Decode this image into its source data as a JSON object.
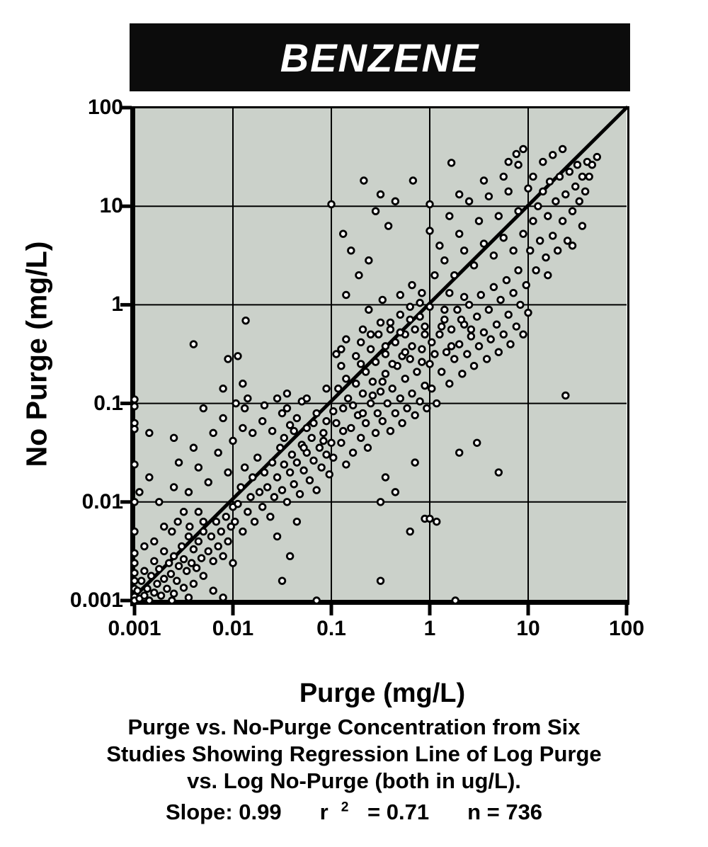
{
  "title": "BENZENE",
  "chart_data": {
    "type": "scatter",
    "title": "BENZENE",
    "xlabel": "Purge (mg/L)",
    "ylabel": "No Purge (mg/L)",
    "xscale": "log",
    "yscale": "log",
    "xlim": [
      0.001,
      100
    ],
    "ylim": [
      0.001,
      100
    ],
    "x_tick_labels": [
      "0.001",
      "0.01",
      "0.1",
      "1",
      "10",
      "100"
    ],
    "y_tick_labels": [
      "100",
      "10",
      "1",
      "0.1",
      "0.01",
      "0.001"
    ],
    "grid": true,
    "legend": "none",
    "plot_bg": "#cbd1ca",
    "marker": {
      "fill": "#ffffff",
      "stroke": "#000000",
      "radius": 4.3,
      "stroke_width": 2.8
    },
    "regression_line": {
      "from_log10": [
        -3,
        -2.96
      ],
      "to_log10": [
        2,
        2
      ],
      "color": "#000000",
      "width": 5
    },
    "caption_lines": [
      "Purge vs. No-Purge Concentration from Six",
      "Studies Showing Regression Line of Log Purge",
      "vs. Log No-Purge (both in ug/L)."
    ],
    "stats": {
      "slope": "Slope:  0.99",
      "r_base": "r",
      "r_exp": "2",
      "r_value": " = 0.71",
      "n": "n = 736"
    },
    "points_log10": [
      [
        -3,
        -0.96
      ],
      [
        -3,
        -1.03
      ],
      [
        -3,
        -1.2
      ],
      [
        -3,
        -1.26
      ],
      [
        -3,
        -1.62
      ],
      [
        -3,
        -2.0
      ],
      [
        -3,
        -2.3
      ],
      [
        -3,
        -2.52
      ],
      [
        -3,
        -2.62
      ],
      [
        -3,
        -2.72
      ],
      [
        -3,
        -2.8
      ],
      [
        -3,
        -2.88
      ],
      [
        -3,
        -2.96
      ],
      [
        -3,
        -3
      ],
      [
        -2.97,
        -2.9
      ],
      [
        -2.95,
        -2.98
      ],
      [
        -2.93,
        -2.8
      ],
      [
        -2.9,
        -2.95
      ],
      [
        -2.9,
        -2.7
      ],
      [
        -2.87,
        -2.88
      ],
      [
        -2.85,
        -3
      ],
      [
        -2.83,
        -2.75
      ],
      [
        -2.8,
        -2.92
      ],
      [
        -2.8,
        -2.6
      ],
      [
        -2.77,
        -2.83
      ],
      [
        -2.75,
        -2.68
      ],
      [
        -2.73,
        -2.95
      ],
      [
        -2.7,
        -2.78
      ],
      [
        -2.7,
        -2.5
      ],
      [
        -2.67,
        -2.88
      ],
      [
        -2.65,
        -2.62
      ],
      [
        -2.63,
        -2.73
      ],
      [
        -2.6,
        -2.93
      ],
      [
        -2.6,
        -2.55
      ],
      [
        -2.57,
        -2.8
      ],
      [
        -2.55,
        -2.65
      ],
      [
        -2.52,
        -2.45
      ],
      [
        -2.5,
        -2.87
      ],
      [
        -2.5,
        -2.58
      ],
      [
        -2.47,
        -2.7
      ],
      [
        -2.45,
        -2.35
      ],
      [
        -2.42,
        -2.62
      ],
      [
        -2.4,
        -2.83
      ],
      [
        -2.4,
        -2.48
      ],
      [
        -2.37,
        -2.67
      ],
      [
        -2.35,
        -2.4
      ],
      [
        -2.32,
        -2.57
      ],
      [
        -2.3,
        -2.75
      ],
      [
        -2.3,
        -2.3
      ],
      [
        -2.62,
        -3
      ],
      [
        -2.45,
        -2.97
      ],
      [
        -2.2,
        -2.9
      ],
      [
        -2.1,
        -2.97
      ],
      [
        -2.56,
        -2.2
      ],
      [
        -2.5,
        -2.1
      ],
      [
        -2.44,
        -2.25
      ],
      [
        -2.35,
        -2.1
      ],
      [
        -2.3,
        -2.2
      ],
      [
        -2.62,
        -2.3
      ],
      [
        -2.7,
        -2.25
      ],
      [
        -2.8,
        -2.4
      ],
      [
        -2.9,
        -2.45
      ],
      [
        -2.25,
        -2.5
      ],
      [
        -2.22,
        -2.35
      ],
      [
        -2.2,
        -2.6
      ],
      [
        -2.17,
        -2.2
      ],
      [
        -2.15,
        -2.45
      ],
      [
        -2.12,
        -2.3
      ],
      [
        -2.1,
        -2.55
      ],
      [
        -2.07,
        -2.15
      ],
      [
        -2.05,
        -2.4
      ],
      [
        -2.02,
        -2.25
      ],
      [
        -2.0,
        -2.62
      ],
      [
        -2.0,
        -2.05
      ],
      [
        -2.95,
        -1.9
      ],
      [
        -2.85,
        -1.75
      ],
      [
        -2.75,
        -2.0
      ],
      [
        -2.6,
        -1.85
      ],
      [
        -2.55,
        -1.6
      ],
      [
        -2.45,
        -1.9
      ],
      [
        -2.35,
        -1.65
      ],
      [
        -2.25,
        -1.8
      ],
      [
        -2.15,
        -1.5
      ],
      [
        -2.05,
        -1.7
      ],
      [
        -2.85,
        -1.3
      ],
      [
        -2.6,
        -1.35
      ],
      [
        -2.4,
        -1.45
      ],
      [
        -2.2,
        -1.3
      ],
      [
        -2.0,
        -1.38
      ],
      [
        -2.1,
        -1.15
      ],
      [
        -2.3,
        -1.05
      ],
      [
        -2.4,
        -0.4
      ],
      [
        -2.1,
        -0.85
      ],
      [
        -2.05,
        -0.55
      ],
      [
        -1.95,
        -0.52
      ],
      [
        -1.9,
        -0.8
      ],
      [
        -1.87,
        -0.16
      ],
      [
        -1.97,
        -1.0
      ],
      [
        -1.85,
        -0.95
      ],
      [
        -1.98,
        -2.2
      ],
      [
        -1.95,
        -2.02
      ],
      [
        -1.92,
        -1.85
      ],
      [
        -1.9,
        -2.3
      ],
      [
        -1.88,
        -1.65
      ],
      [
        -1.85,
        -2.1
      ],
      [
        -1.82,
        -1.95
      ],
      [
        -1.8,
        -1.75
      ],
      [
        -1.78,
        -2.2
      ],
      [
        -1.75,
        -1.55
      ],
      [
        -1.73,
        -1.9
      ],
      [
        -1.7,
        -2.05
      ],
      [
        -1.68,
        -1.7
      ],
      [
        -1.65,
        -1.85
      ],
      [
        -1.62,
        -2.15
      ],
      [
        -1.6,
        -1.6
      ],
      [
        -1.58,
        -1.95
      ],
      [
        -1.55,
        -1.75
      ],
      [
        -1.52,
        -1.45
      ],
      [
        -1.5,
        -1.88
      ],
      [
        -1.48,
        -1.62
      ],
      [
        -1.45,
        -2.0
      ],
      [
        -1.42,
        -1.7
      ],
      [
        -1.4,
        -1.52
      ],
      [
        -1.38,
        -1.82
      ],
      [
        -1.35,
        -1.6
      ],
      [
        -1.32,
        -1.92
      ],
      [
        -1.3,
        -1.42
      ],
      [
        -1.28,
        -1.68
      ],
      [
        -1.25,
        -1.5
      ],
      [
        -1.22,
        -1.78
      ],
      [
        -1.2,
        -1.35
      ],
      [
        -1.18,
        -1.58
      ],
      [
        -1.15,
        -1.88
      ],
      [
        -1.12,
        -1.45
      ],
      [
        -1.1,
        -1.65
      ],
      [
        -1.08,
        -1.3
      ],
      [
        -1.05,
        -1.52
      ],
      [
        -1.02,
        -1.72
      ],
      [
        -1.0,
        -1.4
      ],
      [
        -1.9,
        -1.25
      ],
      [
        -1.8,
        -1.3
      ],
      [
        -1.7,
        -1.18
      ],
      [
        -1.6,
        -1.28
      ],
      [
        -1.5,
        -1.1
      ],
      [
        -1.42,
        -1.22
      ],
      [
        -1.35,
        -1.15
      ],
      [
        -1.25,
        -1.25
      ],
      [
        -1.15,
        -1.1
      ],
      [
        -1.05,
        -1.18
      ],
      [
        -1.88,
        -1.05
      ],
      [
        -1.68,
        -1.02
      ],
      [
        -1.55,
        -0.95
      ],
      [
        -1.45,
        -0.9
      ],
      [
        -1.3,
        -0.98
      ],
      [
        -1.55,
        -2.35
      ],
      [
        -1.35,
        -2.2
      ],
      [
        -1.5,
        -2.8
      ],
      [
        -1.42,
        -2.55
      ],
      [
        -1.15,
        -3
      ],
      [
        -0.98,
        -1.55
      ],
      [
        -0.95,
        -1.2
      ],
      [
        -0.93,
        -0.85
      ],
      [
        -0.9,
        -1.4
      ],
      [
        -0.88,
        -1.05
      ],
      [
        -0.85,
        -1.62
      ],
      [
        -0.83,
        -0.95
      ],
      [
        -0.8,
        -1.25
      ],
      [
        -0.78,
        -1.5
      ],
      [
        -0.75,
        -0.8
      ],
      [
        -0.73,
        -1.12
      ],
      [
        -0.7,
        -1.35
      ],
      [
        -0.68,
        -0.9
      ],
      [
        -0.65,
        -1.2
      ],
      [
        -0.63,
        -1.45
      ],
      [
        -0.6,
        -1.0
      ],
      [
        -0.58,
        -0.78
      ],
      [
        -0.55,
        -1.3
      ],
      [
        -0.53,
        -1.1
      ],
      [
        -0.5,
        -0.88
      ],
      [
        -0.48,
        -1.18
      ],
      [
        -0.45,
        -0.7
      ],
      [
        -0.43,
        -1.0
      ],
      [
        -0.4,
        -1.28
      ],
      [
        -0.38,
        -0.85
      ],
      [
        -0.35,
        -1.1
      ],
      [
        -0.33,
        -0.62
      ],
      [
        -0.3,
        -0.95
      ],
      [
        -0.28,
        -1.2
      ],
      [
        -0.25,
        -0.75
      ],
      [
        -0.23,
        -1.05
      ],
      [
        -0.2,
        -0.55
      ],
      [
        -0.18,
        -0.9
      ],
      [
        -0.15,
        -1.12
      ],
      [
        -0.13,
        -0.68
      ],
      [
        -0.1,
        -0.98
      ],
      [
        -0.08,
        -0.45
      ],
      [
        -0.05,
        -0.82
      ],
      [
        -0.03,
        -1.05
      ],
      [
        0.0,
        -0.6
      ],
      [
        -0.95,
        -0.5
      ],
      [
        -0.85,
        -0.35
      ],
      [
        -0.75,
        -0.52
      ],
      [
        -0.68,
        -0.25
      ],
      [
        -0.6,
        -0.45
      ],
      [
        -0.52,
        -0.3
      ],
      [
        -0.45,
        -0.5
      ],
      [
        -0.4,
        -0.18
      ],
      [
        -0.35,
        -0.38
      ],
      [
        -0.3,
        -0.1
      ],
      [
        -0.25,
        -0.3
      ],
      [
        -0.2,
        -0.02
      ],
      [
        -0.15,
        -0.25
      ],
      [
        -0.1,
        -0.12
      ],
      [
        -0.05,
        -0.3
      ],
      [
        -0.9,
        -0.62
      ],
      [
        -0.7,
        -0.6
      ],
      [
        -0.55,
        -0.58
      ],
      [
        -0.62,
        -0.05
      ],
      [
        -0.48,
        0.05
      ],
      [
        -0.3,
        0.1
      ],
      [
        -0.18,
        0.2
      ],
      [
        -0.08,
        0.12
      ],
      [
        -1.0,
        1.02
      ],
      [
        -0.88,
        0.72
      ],
      [
        -0.8,
        0.55
      ],
      [
        -0.67,
        1.26
      ],
      [
        -0.55,
        0.95
      ],
      [
        -0.5,
        1.12
      ],
      [
        -0.42,
        0.8
      ],
      [
        -0.35,
        1.05
      ],
      [
        -0.62,
        0.45
      ],
      [
        -0.72,
        0.3
      ],
      [
        -0.85,
        0.1
      ],
      [
        -0.17,
        1.26
      ],
      [
        -0.5,
        -2.0
      ],
      [
        -0.35,
        -1.9
      ],
      [
        -0.2,
        -2.3
      ],
      [
        -0.05,
        -2.17
      ],
      [
        -0.45,
        -1.75
      ],
      [
        -0.15,
        -1.6
      ],
      [
        -0.5,
        -2.8
      ],
      [
        0.02,
        -0.85
      ],
      [
        0.05,
        -0.5
      ],
      [
        0.07,
        -1.0
      ],
      [
        0.1,
        -0.3
      ],
      [
        0.12,
        -0.68
      ],
      [
        0.15,
        -0.15
      ],
      [
        0.17,
        -0.48
      ],
      [
        0.2,
        -0.8
      ],
      [
        0.22,
        -0.25
      ],
      [
        0.25,
        -0.55
      ],
      [
        0.28,
        -0.05
      ],
      [
        0.3,
        -0.4
      ],
      [
        0.33,
        -0.7
      ],
      [
        0.35,
        -0.2
      ],
      [
        0.38,
        -0.5
      ],
      [
        0.4,
        0.0
      ],
      [
        0.42,
        -0.32
      ],
      [
        0.45,
        -0.62
      ],
      [
        0.48,
        -0.12
      ],
      [
        0.5,
        -0.42
      ],
      [
        0.52,
        0.1
      ],
      [
        0.55,
        -0.28
      ],
      [
        0.58,
        -0.55
      ],
      [
        0.6,
        -0.05
      ],
      [
        0.62,
        -0.35
      ],
      [
        0.65,
        0.18
      ],
      [
        0.68,
        -0.2
      ],
      [
        0.7,
        -0.48
      ],
      [
        0.72,
        0.05
      ],
      [
        0.75,
        -0.3
      ],
      [
        0.78,
        0.25
      ],
      [
        0.8,
        -0.1
      ],
      [
        0.82,
        -0.4
      ],
      [
        0.85,
        0.12
      ],
      [
        0.88,
        -0.22
      ],
      [
        0.9,
        0.35
      ],
      [
        0.92,
        0.0
      ],
      [
        0.95,
        -0.3
      ],
      [
        0.98,
        0.2
      ],
      [
        1.0,
        -0.08
      ],
      [
        0.05,
        0.3
      ],
      [
        0.15,
        0.45
      ],
      [
        0.25,
        0.3
      ],
      [
        0.35,
        0.55
      ],
      [
        0.45,
        0.4
      ],
      [
        0.55,
        0.62
      ],
      [
        0.65,
        0.5
      ],
      [
        0.75,
        0.68
      ],
      [
        0.85,
        0.55
      ],
      [
        0.95,
        0.72
      ],
      [
        0.1,
        0.6
      ],
      [
        0.3,
        0.72
      ],
      [
        0.5,
        0.85
      ],
      [
        0.7,
        0.9
      ],
      [
        0.9,
        0.95
      ],
      [
        0.2,
        0.9
      ],
      [
        0.4,
        1.05
      ],
      [
        0.6,
        1.1
      ],
      [
        0.8,
        1.15
      ],
      [
        0.0,
        0.75
      ],
      [
        0.3,
        1.12
      ],
      [
        0.55,
        1.26
      ],
      [
        0.0,
        1.02
      ],
      [
        0.75,
        1.3
      ],
      [
        0.9,
        1.42
      ],
      [
        0.88,
        1.53
      ],
      [
        0.95,
        1.58
      ],
      [
        0.8,
        1.45
      ],
      [
        0.22,
        1.44
      ],
      [
        0.48,
        -1.4
      ],
      [
        0.7,
        -1.7
      ],
      [
        0.0,
        -2.17
      ],
      [
        0.26,
        -3
      ],
      [
        0.3,
        -1.5
      ],
      [
        0.07,
        -2.2
      ],
      [
        1.02,
        0.55
      ],
      [
        1.05,
        0.85
      ],
      [
        1.08,
        0.35
      ],
      [
        1.1,
        1.0
      ],
      [
        1.12,
        0.65
      ],
      [
        1.15,
        1.15
      ],
      [
        1.18,
        0.48
      ],
      [
        1.2,
        0.9
      ],
      [
        1.22,
        1.25
      ],
      [
        1.25,
        0.7
      ],
      [
        1.28,
        1.05
      ],
      [
        1.3,
        0.55
      ],
      [
        1.32,
        1.3
      ],
      [
        1.35,
        0.85
      ],
      [
        1.38,
        1.12
      ],
      [
        1.4,
        0.65
      ],
      [
        1.42,
        1.35
      ],
      [
        1.45,
        0.95
      ],
      [
        1.48,
        1.2
      ],
      [
        1.5,
        1.42
      ],
      [
        1.52,
        1.05
      ],
      [
        1.55,
        1.3
      ],
      [
        1.58,
        1.15
      ],
      [
        1.6,
        1.45
      ],
      [
        1.05,
        1.3
      ],
      [
        1.15,
        1.45
      ],
      [
        1.25,
        1.52
      ],
      [
        1.35,
        1.58
      ],
      [
        1.0,
        1.18
      ],
      [
        1.2,
        0.3
      ],
      [
        1.38,
        -0.92
      ],
      [
        1.45,
        0.6
      ],
      [
        1.55,
        0.8
      ],
      [
        1.62,
        1.3
      ],
      [
        1.65,
        1.42
      ],
      [
        1.7,
        1.5
      ],
      [
        -1.48,
        -1.35
      ],
      [
        -1.38,
        -1.28
      ],
      [
        -1.28,
        -1.45
      ],
      [
        -1.18,
        -1.2
      ],
      [
        -1.08,
        -1.38
      ],
      [
        -0.98,
        -1.08
      ],
      [
        -0.88,
        -1.28
      ],
      [
        -0.78,
        -1.02
      ],
      [
        -0.68,
        -1.1
      ],
      [
        -0.58,
        -0.92
      ],
      [
        -0.48,
        -0.78
      ],
      [
        -0.38,
        -0.6
      ],
      [
        -0.28,
        -0.52
      ],
      [
        -0.18,
        -0.42
      ],
      [
        -0.08,
        -0.58
      ],
      [
        0.02,
        -0.38
      ],
      [
        0.12,
        -0.22
      ],
      [
        0.22,
        -0.42
      ],
      [
        0.32,
        -0.15
      ],
      [
        0.42,
        -0.25
      ],
      [
        -1.45,
        -1.05
      ],
      [
        -1.25,
        -0.95
      ],
      [
        -1.05,
        -0.85
      ],
      [
        -0.85,
        -0.75
      ],
      [
        -0.65,
        -0.68
      ],
      [
        -0.45,
        -0.42
      ],
      [
        -0.25,
        -0.48
      ],
      [
        -0.05,
        -0.22
      ],
      [
        0.15,
        -0.05
      ],
      [
        0.35,
        0.08
      ],
      [
        -0.6,
        -0.3
      ],
      [
        -0.4,
        -0.25
      ],
      [
        -0.2,
        -0.15
      ],
      [
        0.0,
        -0.02
      ],
      [
        0.2,
        0.12
      ],
      [
        -0.9,
        -0.45
      ],
      [
        -0.7,
        -0.38
      ],
      [
        -0.5,
        -0.18
      ],
      [
        -0.3,
        -0.28
      ],
      [
        -0.1,
        0.02
      ]
    ]
  }
}
